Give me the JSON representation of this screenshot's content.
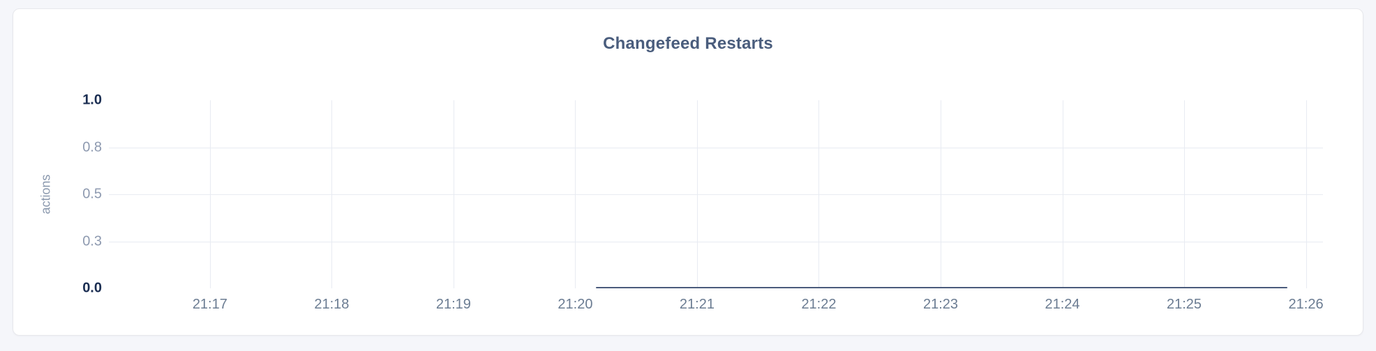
{
  "chart_data": {
    "type": "line",
    "title": "Changefeed Restarts",
    "ylabel": "actions",
    "xlabel": "",
    "ylim": [
      0,
      1
    ],
    "grid": true,
    "legend_position": "none",
    "y_ticks": [
      {
        "label": "1.0",
        "value": 1.0,
        "emphasis": true,
        "gridline": false
      },
      {
        "label": "0.8",
        "value": 0.75,
        "emphasis": false,
        "gridline": true
      },
      {
        "label": "0.5",
        "value": 0.5,
        "emphasis": false,
        "gridline": true
      },
      {
        "label": "0.3",
        "value": 0.25,
        "emphasis": false,
        "gridline": true
      },
      {
        "label": "0.0",
        "value": 0.0,
        "emphasis": true,
        "gridline": false
      }
    ],
    "x_ticks": [
      {
        "label": "21:17",
        "minute": 17
      },
      {
        "label": "21:18",
        "minute": 18
      },
      {
        "label": "21:19",
        "minute": 19
      },
      {
        "label": "21:20",
        "minute": 20
      },
      {
        "label": "21:21",
        "minute": 21
      },
      {
        "label": "21:22",
        "minute": 22
      },
      {
        "label": "21:23",
        "minute": 23
      },
      {
        "label": "21:24",
        "minute": 24
      },
      {
        "label": "21:25",
        "minute": 25
      },
      {
        "label": "21:26",
        "minute": 26
      }
    ],
    "x_domain_minutes": [
      16.17,
      26.14
    ],
    "series": [
      {
        "name": "actions",
        "color": "#4a5b7c",
        "points": [
          {
            "time": "21:20:10",
            "minute": 20.17,
            "value": 0
          },
          {
            "time": "21:25:51",
            "minute": 25.85,
            "value": 0
          }
        ]
      }
    ]
  }
}
